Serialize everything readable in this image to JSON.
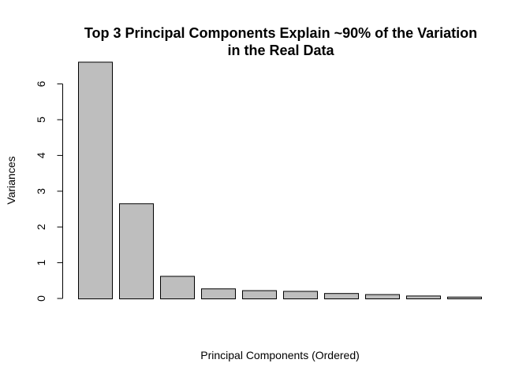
{
  "chart_data": {
    "type": "bar",
    "title_lines": [
      "Top 3 Principal Components Explain ~90% of the Variation",
      "in the Real Data"
    ],
    "xlabel": "Principal Components (Ordered)",
    "ylabel": "Variances",
    "ylim": [
      0,
      6.7
    ],
    "yticks": [
      "0",
      "1",
      "2",
      "3",
      "4",
      "5",
      "6"
    ],
    "values": [
      6.62,
      2.66,
      0.63,
      0.28,
      0.23,
      0.21,
      0.15,
      0.12,
      0.08,
      0.05
    ],
    "grid": false,
    "legend": "none",
    "colors": {
      "bar_fill": "#bebebe",
      "bar_stroke": "#000000",
      "axis": "#000000",
      "background": "#ffffff"
    }
  }
}
